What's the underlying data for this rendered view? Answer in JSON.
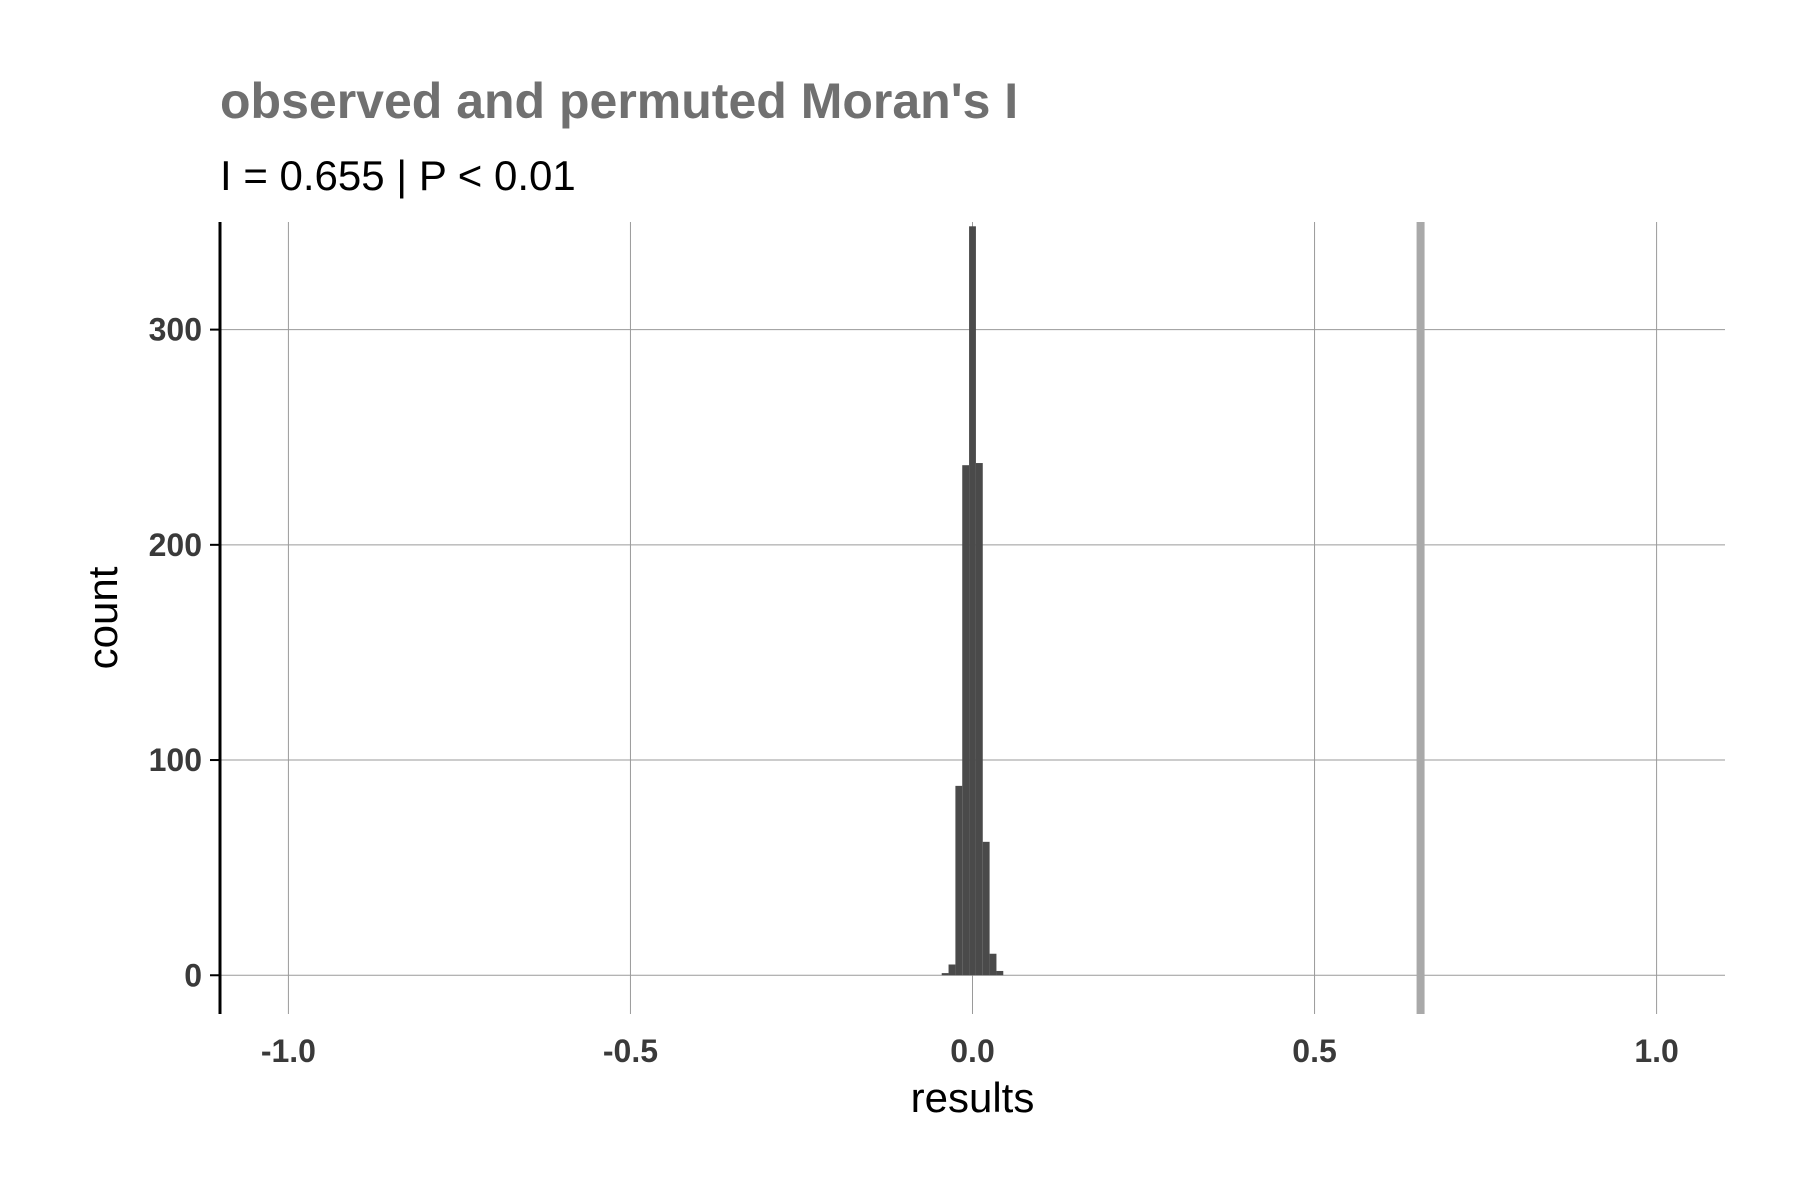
{
  "chart_data": {
    "type": "bar",
    "title": "observed and permuted Moran's I",
    "subtitle": "I = 0.655 | P < 0.01",
    "xlabel": "results",
    "ylabel": "count",
    "xlim": [
      -1.1,
      1.1
    ],
    "ylim": [
      -18,
      350
    ],
    "x_ticks": [
      -1.0,
      -0.5,
      0.0,
      0.5,
      1.0
    ],
    "x_tick_labels": [
      "-1.0",
      "-0.5",
      "0.0",
      "0.5",
      "1.0"
    ],
    "y_ticks": [
      0,
      100,
      200,
      300
    ],
    "y_tick_labels": [
      "0",
      "100",
      "200",
      "300"
    ],
    "grid": true,
    "bin_width": 0.01,
    "bins": [
      {
        "x": -0.04,
        "count": 1
      },
      {
        "x": -0.03,
        "count": 5
      },
      {
        "x": -0.02,
        "count": 88
      },
      {
        "x": -0.01,
        "count": 237
      },
      {
        "x": 0.0,
        "count": 348
      },
      {
        "x": 0.01,
        "count": 238
      },
      {
        "x": 0.02,
        "count": 62
      },
      {
        "x": 0.03,
        "count": 10
      },
      {
        "x": 0.04,
        "count": 2
      }
    ],
    "observed_I": 0.655,
    "colors": {
      "bars": "#4a4a4a",
      "observed_line": "#a9a9a9",
      "grid": "#9a9a9a",
      "title": "#707070"
    }
  }
}
